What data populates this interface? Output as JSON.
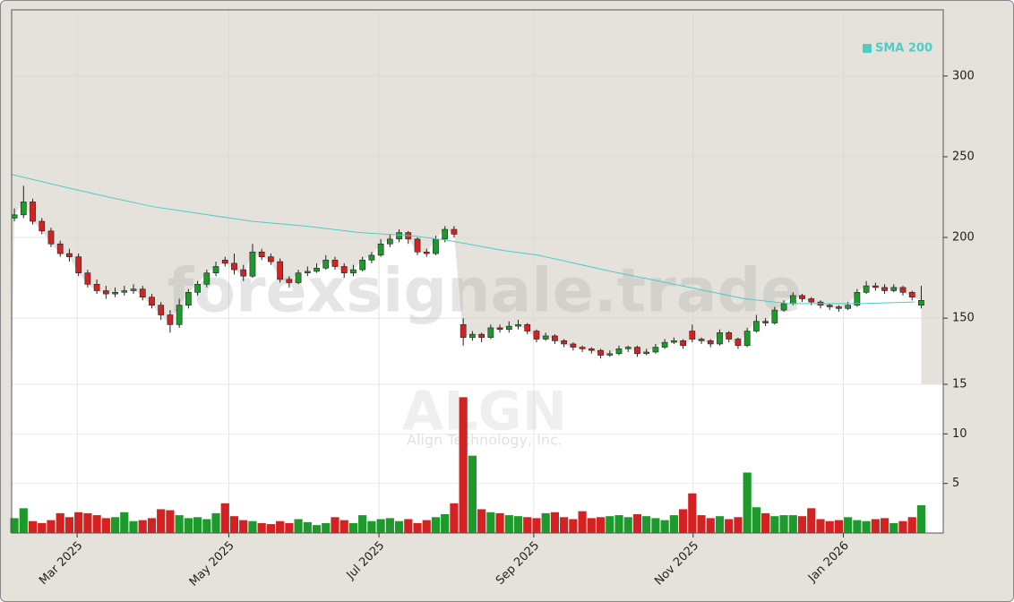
{
  "chart_data": {
    "type": "candlestick",
    "watermark": "forexsignale.trade",
    "symbol": "ALGN",
    "company": "Align Technology, Inc.",
    "up_color": "#1e9a2c",
    "down_color": "#d42222",
    "open": [
      212,
      214,
      222,
      210,
      204,
      196,
      190,
      188,
      178,
      171,
      167,
      165,
      166,
      167,
      168,
      163,
      158,
      152,
      146,
      158,
      166,
      171,
      178,
      186,
      184,
      180,
      176,
      191,
      188,
      185,
      174,
      172,
      178,
      179,
      181,
      186,
      182,
      178,
      180,
      186,
      189,
      196,
      199,
      203,
      199,
      191,
      190,
      199,
      205,
      146,
      138,
      140,
      138,
      144,
      143,
      145,
      146,
      142,
      137,
      139,
      136,
      134,
      132,
      131,
      130,
      127,
      128,
      131,
      132,
      128,
      129,
      132,
      135,
      136,
      142,
      137,
      136,
      134,
      141,
      137,
      133,
      142,
      148,
      147,
      155,
      159,
      164,
      162,
      160,
      158,
      157,
      156,
      158,
      166,
      170,
      169,
      167,
      169,
      166,
      158
    ],
    "high": [
      218,
      232,
      224,
      212,
      206,
      198,
      193,
      190,
      180,
      174,
      170,
      169,
      170,
      171,
      170,
      165,
      160,
      155,
      162,
      168,
      173,
      180,
      185,
      188,
      190,
      183,
      196,
      193,
      190,
      187,
      176,
      180,
      182,
      184,
      189,
      188,
      184,
      183,
      188,
      191,
      199,
      202,
      205,
      204,
      200,
      193,
      201,
      207,
      207,
      150,
      142,
      141,
      146,
      146,
      148,
      149,
      147,
      143,
      141,
      140,
      137,
      135,
      133,
      132,
      131,
      130,
      133,
      133,
      133,
      131,
      134,
      137,
      138,
      137,
      146,
      138,
      137,
      143,
      142,
      138,
      144,
      152,
      150,
      157,
      161,
      166,
      165,
      163,
      161,
      159,
      158,
      160,
      168,
      173,
      172,
      171,
      171,
      170,
      167,
      170
    ],
    "low": [
      210,
      212,
      208,
      202,
      194,
      188,
      185,
      176,
      169,
      165,
      162,
      163,
      164,
      165,
      161,
      156,
      149,
      141,
      144,
      156,
      164,
      169,
      176,
      182,
      177,
      173,
      175,
      186,
      183,
      172,
      169,
      171,
      176,
      178,
      180,
      180,
      175,
      176,
      179,
      184,
      188,
      194,
      197,
      196,
      189,
      188,
      189,
      197,
      200,
      133,
      136,
      135,
      137,
      141,
      141,
      143,
      140,
      135,
      136,
      134,
      132,
      130,
      129,
      128,
      125,
      126,
      127,
      129,
      126,
      127,
      128,
      131,
      134,
      131,
      135,
      134,
      132,
      133,
      135,
      131,
      132,
      141,
      145,
      146,
      154,
      158,
      160,
      158,
      156,
      155,
      154,
      155,
      157,
      165,
      167,
      165,
      166,
      164,
      161,
      156
    ],
    "close": [
      214,
      222,
      210,
      204,
      196,
      190,
      188,
      178,
      171,
      167,
      165,
      166,
      167,
      168,
      163,
      158,
      152,
      146,
      158,
      166,
      171,
      178,
      182,
      184,
      180,
      176,
      191,
      188,
      185,
      174,
      172,
      178,
      179,
      181,
      186,
      182,
      178,
      180,
      186,
      189,
      196,
      199,
      203,
      199,
      191,
      190,
      199,
      205,
      202,
      138,
      140,
      138,
      144,
      143,
      145,
      146,
      142,
      137,
      139,
      136,
      134,
      132,
      131,
      130,
      127,
      128,
      131,
      132,
      128,
      129,
      132,
      135,
      136,
      133,
      137,
      136,
      134,
      141,
      137,
      133,
      142,
      148,
      147,
      155,
      159,
      164,
      162,
      160,
      158,
      157,
      156,
      158,
      166,
      170,
      169,
      167,
      169,
      166,
      163,
      161
    ],
    "volume": [
      1.5,
      2.5,
      1.2,
      1.0,
      1.3,
      2.0,
      1.6,
      2.1,
      2.0,
      1.8,
      1.5,
      1.6,
      2.1,
      1.2,
      1.3,
      1.5,
      2.4,
      2.3,
      1.8,
      1.5,
      1.6,
      1.4,
      2.0,
      3.0,
      1.7,
      1.3,
      1.2,
      1.0,
      0.9,
      1.2,
      1.0,
      1.4,
      1.1,
      0.8,
      1.0,
      1.6,
      1.3,
      1.0,
      1.8,
      1.2,
      1.4,
      1.5,
      1.2,
      1.4,
      1.0,
      1.3,
      1.6,
      1.9,
      3.0,
      13.7,
      7.8,
      2.4,
      2.1,
      2.0,
      1.8,
      1.7,
      1.6,
      1.5,
      2.0,
      2.1,
      1.6,
      1.4,
      2.2,
      1.5,
      1.6,
      1.7,
      1.8,
      1.6,
      1.9,
      1.7,
      1.5,
      1.3,
      1.8,
      2.4,
      4.0,
      1.8,
      1.5,
      1.7,
      1.4,
      1.6,
      6.1,
      2.6,
      2.0,
      1.7,
      1.8,
      1.8,
      1.7,
      2.5,
      1.4,
      1.2,
      1.3,
      1.6,
      1.3,
      1.2,
      1.4,
      1.5,
      1.0,
      1.2,
      1.6,
      2.8
    ],
    "sma": {
      "name": "SMA 200",
      "color": "#4ecdc4",
      "x": [
        -0.3,
        6.4,
        10.3,
        15.2,
        25.9,
        31.8,
        37.7,
        43.5,
        47.5,
        53.3,
        57.2,
        65.1,
        72.9,
        79.7,
        84.6,
        92.5,
        98.3
      ],
      "values": [
        239,
        230,
        225,
        219,
        210,
        207,
        203,
        201,
        198,
        192,
        189,
        179,
        170,
        162,
        159,
        159,
        160
      ]
    },
    "legend": "upper right",
    "grid": true,
    "xlim": [
      -0.3,
      101.4
    ],
    "xticks": [
      {
        "value": 6.85,
        "label": "Mar 2025"
      },
      {
        "value": 23.4,
        "label": "May 2025"
      },
      {
        "value": 39.8,
        "label": "Jul 2025"
      },
      {
        "value": 56.7,
        "label": "Sep 2025"
      },
      {
        "value": 74.1,
        "label": "Nov 2025"
      },
      {
        "value": 90.5,
        "label": "Jan 2026"
      }
    ],
    "ylim": [
      109,
      341
    ],
    "yticks": [
      150,
      200,
      250,
      300
    ],
    "volume_ylim": [
      0,
      15
    ],
    "volume_yticks": [
      5,
      10,
      15
    ]
  }
}
